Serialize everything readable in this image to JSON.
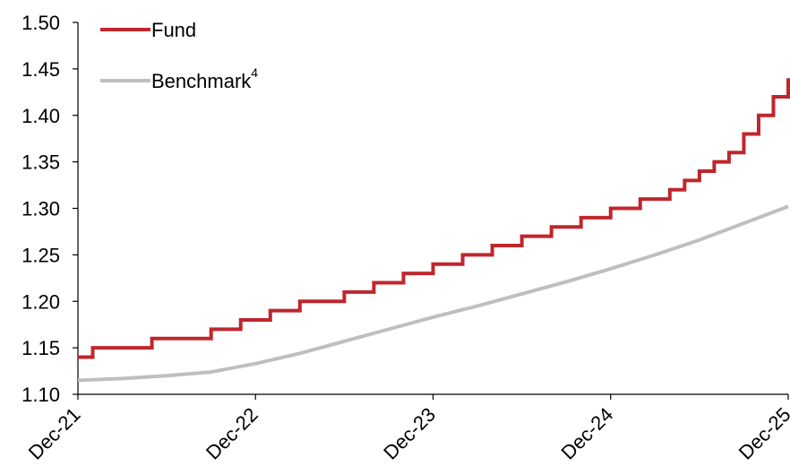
{
  "chart_data": {
    "type": "line",
    "title": "",
    "xlabel": "",
    "ylabel": "",
    "ylim": [
      1.1,
      1.5
    ],
    "yticks": [
      "1.10",
      "1.15",
      "1.20",
      "1.25",
      "1.30",
      "1.35",
      "1.40",
      "1.45",
      "1.50"
    ],
    "xticks": [
      "Dec-21",
      "Dec-22",
      "Dec-23",
      "Dec-24",
      "Dec-25"
    ],
    "grid": false,
    "legend_position": "top-left",
    "legend": {
      "fund_label": "Fund",
      "benchmark_label": "Benchmark",
      "benchmark_superscript": "4"
    },
    "series": [
      {
        "name": "Fund",
        "color": "#c0262d",
        "style": "step",
        "points": [
          [
            "2021-12",
            1.14
          ],
          [
            "2022-01",
            1.15
          ],
          [
            "2022-02",
            1.15
          ],
          [
            "2022-03",
            1.15
          ],
          [
            "2022-04",
            1.15
          ],
          [
            "2022-05",
            1.16
          ],
          [
            "2022-06",
            1.16
          ],
          [
            "2022-07",
            1.16
          ],
          [
            "2022-08",
            1.16
          ],
          [
            "2022-09",
            1.17
          ],
          [
            "2022-10",
            1.17
          ],
          [
            "2022-11",
            1.18
          ],
          [
            "2022-12",
            1.18
          ],
          [
            "2023-01",
            1.19
          ],
          [
            "2023-02",
            1.19
          ],
          [
            "2023-03",
            1.2
          ],
          [
            "2023-04",
            1.2
          ],
          [
            "2023-05",
            1.2
          ],
          [
            "2023-06",
            1.21
          ],
          [
            "2023-07",
            1.21
          ],
          [
            "2023-08",
            1.22
          ],
          [
            "2023-09",
            1.22
          ],
          [
            "2023-10",
            1.23
          ],
          [
            "2023-11",
            1.23
          ],
          [
            "2023-12",
            1.24
          ],
          [
            "2024-01",
            1.24
          ],
          [
            "2024-02",
            1.25
          ],
          [
            "2024-03",
            1.25
          ],
          [
            "2024-04",
            1.26
          ],
          [
            "2024-05",
            1.26
          ],
          [
            "2024-06",
            1.27
          ],
          [
            "2024-07",
            1.27
          ],
          [
            "2024-08",
            1.28
          ],
          [
            "2024-09",
            1.28
          ],
          [
            "2024-10",
            1.29
          ],
          [
            "2024-11",
            1.29
          ],
          [
            "2024-12",
            1.3
          ],
          [
            "2025-01",
            1.3
          ],
          [
            "2025-02",
            1.31
          ],
          [
            "2025-03",
            1.31
          ],
          [
            "2025-04",
            1.32
          ],
          [
            "2025-05",
            1.33
          ],
          [
            "2025-06",
            1.34
          ],
          [
            "2025-07",
            1.35
          ],
          [
            "2025-08",
            1.36
          ],
          [
            "2025-09",
            1.38
          ],
          [
            "2025-10",
            1.4
          ],
          [
            "2025-11",
            1.42
          ],
          [
            "2025-12",
            1.44
          ]
        ]
      },
      {
        "name": "Benchmark",
        "color": "#bfbfbf",
        "style": "line",
        "points": [
          [
            "2021-12",
            1.115
          ],
          [
            "2022-03",
            1.117
          ],
          [
            "2022-06",
            1.12
          ],
          [
            "2022-09",
            1.124
          ],
          [
            "2022-12",
            1.133
          ],
          [
            "2023-03",
            1.144
          ],
          [
            "2023-06",
            1.157
          ],
          [
            "2023-09",
            1.17
          ],
          [
            "2023-12",
            1.183
          ],
          [
            "2024-03",
            1.195
          ],
          [
            "2024-06",
            1.208
          ],
          [
            "2024-09",
            1.221
          ],
          [
            "2024-12",
            1.235
          ],
          [
            "2025-03",
            1.25
          ],
          [
            "2025-06",
            1.266
          ],
          [
            "2025-09",
            1.284
          ],
          [
            "2025-12",
            1.302
          ]
        ]
      }
    ]
  }
}
